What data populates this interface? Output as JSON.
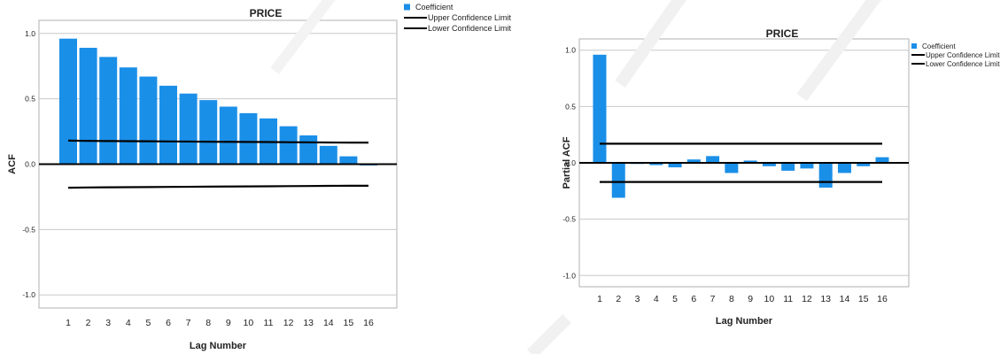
{
  "chart_data": [
    {
      "type": "bar",
      "title": "PRICE",
      "xlabel": "Lag Number",
      "ylabel": "ACF",
      "ylim": [
        -1.1,
        1.1
      ],
      "yticks": [
        "1.0",
        "0.5",
        "0.0",
        "-0.5",
        "-1.0"
      ],
      "ytick_values": [
        1.0,
        0.5,
        0.0,
        -0.5,
        -1.0
      ],
      "categories": [
        "1",
        "2",
        "3",
        "4",
        "5",
        "6",
        "7",
        "8",
        "9",
        "10",
        "11",
        "12",
        "13",
        "14",
        "15",
        "16"
      ],
      "series": [
        {
          "name": "Coefficient",
          "values": [
            0.96,
            0.89,
            0.82,
            0.74,
            0.67,
            0.6,
            0.54,
            0.49,
            0.44,
            0.39,
            0.35,
            0.29,
            0.22,
            0.14,
            0.06,
            -0.01
          ]
        },
        {
          "name": "Upper Confidence Limit",
          "values": [
            0.18,
            0.178,
            0.177,
            0.176,
            0.175,
            0.174,
            0.173,
            0.172,
            0.171,
            0.17,
            0.169,
            0.168,
            0.167,
            0.166,
            0.165,
            0.165
          ]
        },
        {
          "name": "Lower Confidence Limit",
          "values": [
            -0.18,
            -0.178,
            -0.177,
            -0.176,
            -0.175,
            -0.174,
            -0.173,
            -0.172,
            -0.171,
            -0.17,
            -0.169,
            -0.168,
            -0.167,
            -0.166,
            -0.165,
            -0.165
          ]
        }
      ],
      "legend_position": "top-right",
      "grid": true
    },
    {
      "type": "bar",
      "title": "PRICE",
      "xlabel": "Lag Number",
      "ylabel": "Partial ACF",
      "ylim": [
        -1.1,
        1.1
      ],
      "yticks": [
        "1.0",
        "0.5",
        "0.0",
        "-0.5",
        "-1.0"
      ],
      "ytick_values": [
        1.0,
        0.5,
        0.0,
        -0.5,
        -1.0
      ],
      "categories": [
        "1",
        "2",
        "3",
        "4",
        "5",
        "6",
        "7",
        "8",
        "9",
        "10",
        "11",
        "12",
        "13",
        "14",
        "15",
        "16"
      ],
      "series": [
        {
          "name": "Coefficient",
          "values": [
            0.96,
            -0.31,
            -0.01,
            -0.02,
            -0.04,
            0.03,
            0.06,
            -0.09,
            0.02,
            -0.03,
            -0.07,
            -0.05,
            -0.22,
            -0.09,
            -0.03,
            0.05
          ]
        },
        {
          "name": "Upper Confidence Limit",
          "values": [
            0.17,
            0.17,
            0.17,
            0.17,
            0.17,
            0.17,
            0.17,
            0.17,
            0.17,
            0.17,
            0.17,
            0.17,
            0.17,
            0.17,
            0.17,
            0.17
          ]
        },
        {
          "name": "Lower Confidence Limit",
          "values": [
            -0.17,
            -0.17,
            -0.17,
            -0.17,
            -0.17,
            -0.17,
            -0.17,
            -0.17,
            -0.17,
            -0.17,
            -0.17,
            -0.17,
            -0.17,
            -0.17,
            -0.17,
            -0.17
          ]
        }
      ],
      "legend_position": "top-right",
      "grid": true
    }
  ],
  "colors": {
    "bar": "#1a8fe8",
    "line": "#000000",
    "grid": "#c8c8c8",
    "frame": "#b0b0b0"
  }
}
